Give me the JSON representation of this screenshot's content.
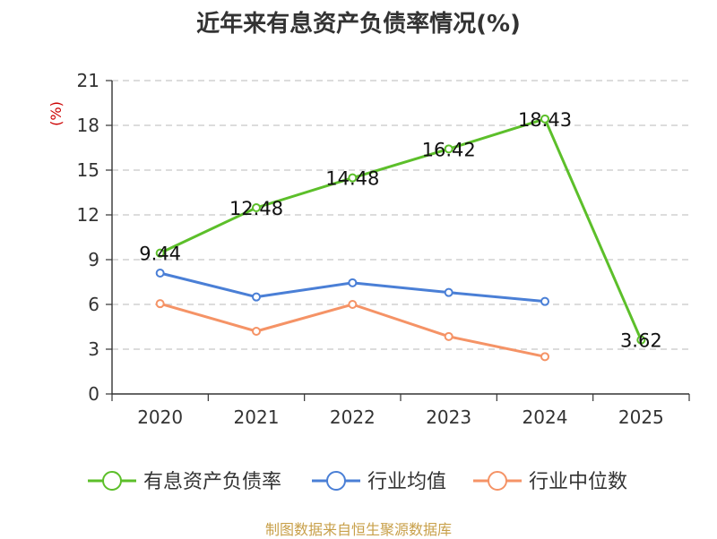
{
  "chart_data": {
    "type": "line",
    "title": "近年来有息资产负债率情况(%)",
    "ylabel": "(%)",
    "xlabel": "",
    "categories": [
      "2020",
      "2021",
      "2022",
      "2023",
      "2024",
      "2025"
    ],
    "ylim": [
      0,
      21
    ],
    "yticks": [
      0,
      3,
      6,
      9,
      12,
      15,
      18,
      21
    ],
    "grid": true,
    "legend_position": "bottom",
    "series": [
      {
        "name": "有息资产负债率",
        "color": "#5cbf2a",
        "values": [
          9.44,
          12.48,
          14.48,
          16.42,
          18.43,
          3.62
        ],
        "labels": [
          "9.44",
          "12.48",
          "14.48",
          "16.42",
          "18.43",
          "3.62"
        ]
      },
      {
        "name": "行业均值",
        "color": "#4a7fd6",
        "values": [
          8.1,
          6.5,
          7.45,
          6.8,
          6.2,
          null
        ]
      },
      {
        "name": "行业中位数",
        "color": "#f59366",
        "values": [
          6.05,
          4.2,
          6.0,
          3.85,
          2.5,
          null
        ]
      }
    ],
    "source": "制图数据来自恒生聚源数据库"
  }
}
